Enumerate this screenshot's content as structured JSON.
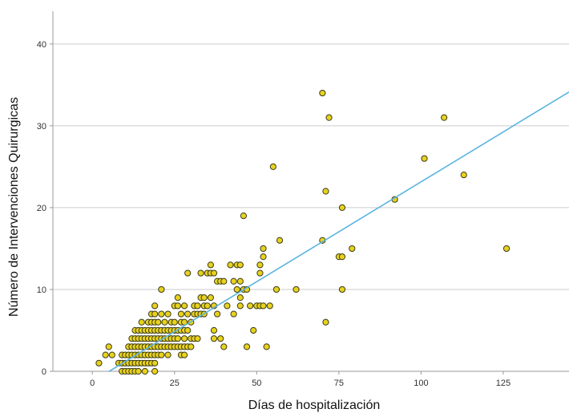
{
  "chart_data": {
    "type": "scatter",
    "title": "",
    "xlabel": "Días de hospitalización",
    "ylabel": "Número de Intervenciones Quirurgicas",
    "xlim": [
      -12,
      145
    ],
    "ylim": [
      0,
      44
    ],
    "xticks": [
      0,
      25,
      50,
      75,
      100,
      125
    ],
    "yticks": [
      0,
      10,
      20,
      30,
      40
    ],
    "xtick_labels": [
      "0",
      "25",
      "50",
      "75",
      "100",
      "125"
    ],
    "ytick_labels": [
      "0",
      "10",
      "20",
      "30",
      "40"
    ],
    "grid": "horizontal",
    "legend": "none",
    "colors": {
      "point_fill": "#e8d21e",
      "point_stroke": "#3a3a1a",
      "fit_line": "#5bb4e0",
      "grid": "#cccccc",
      "axis": "#999999"
    },
    "fit_line": {
      "slope": 0.244,
      "intercept": -1.25,
      "x_range": [
        5,
        145
      ]
    },
    "points": [
      [
        2,
        1
      ],
      [
        4,
        2
      ],
      [
        5,
        3
      ],
      [
        6,
        2
      ],
      [
        8,
        1
      ],
      [
        9,
        0
      ],
      [
        9,
        1
      ],
      [
        9,
        2
      ],
      [
        10,
        0
      ],
      [
        10,
        1
      ],
      [
        10,
        2
      ],
      [
        11,
        0
      ],
      [
        11,
        1
      ],
      [
        11,
        2
      ],
      [
        11,
        3
      ],
      [
        12,
        0
      ],
      [
        12,
        1
      ],
      [
        12,
        2
      ],
      [
        12,
        3
      ],
      [
        12,
        4
      ],
      [
        13,
        0
      ],
      [
        13,
        1
      ],
      [
        13,
        2
      ],
      [
        13,
        3
      ],
      [
        13,
        4
      ],
      [
        13,
        5
      ],
      [
        14,
        0
      ],
      [
        14,
        1
      ],
      [
        14,
        2
      ],
      [
        14,
        3
      ],
      [
        14,
        4
      ],
      [
        14,
        5
      ],
      [
        15,
        1
      ],
      [
        15,
        2
      ],
      [
        15,
        3
      ],
      [
        15,
        4
      ],
      [
        15,
        5
      ],
      [
        15,
        6
      ],
      [
        16,
        0
      ],
      [
        16,
        1
      ],
      [
        16,
        2
      ],
      [
        16,
        3
      ],
      [
        16,
        4
      ],
      [
        16,
        5
      ],
      [
        17,
        1
      ],
      [
        17,
        2
      ],
      [
        17,
        3
      ],
      [
        17,
        4
      ],
      [
        17,
        5
      ],
      [
        17,
        6
      ],
      [
        18,
        1
      ],
      [
        18,
        2
      ],
      [
        18,
        3
      ],
      [
        18,
        4
      ],
      [
        18,
        5
      ],
      [
        18,
        6
      ],
      [
        18,
        7
      ],
      [
        19,
        0
      ],
      [
        19,
        1
      ],
      [
        19,
        2
      ],
      [
        19,
        3
      ],
      [
        19,
        4
      ],
      [
        19,
        5
      ],
      [
        19,
        6
      ],
      [
        19,
        7
      ],
      [
        19,
        8
      ],
      [
        20,
        2
      ],
      [
        20,
        3
      ],
      [
        20,
        4
      ],
      [
        20,
        5
      ],
      [
        20,
        6
      ],
      [
        21,
        2
      ],
      [
        21,
        3
      ],
      [
        21,
        4
      ],
      [
        21,
        5
      ],
      [
        21,
        7
      ],
      [
        21,
        10
      ],
      [
        22,
        3
      ],
      [
        22,
        4
      ],
      [
        22,
        5
      ],
      [
        22,
        6
      ],
      [
        23,
        2
      ],
      [
        23,
        3
      ],
      [
        23,
        4
      ],
      [
        23,
        5
      ],
      [
        23,
        7
      ],
      [
        24,
        3
      ],
      [
        24,
        4
      ],
      [
        24,
        5
      ],
      [
        24,
        6
      ],
      [
        25,
        3
      ],
      [
        25,
        4
      ],
      [
        25,
        5
      ],
      [
        25,
        6
      ],
      [
        25,
        8
      ],
      [
        26,
        3
      ],
      [
        26,
        4
      ],
      [
        26,
        5
      ],
      [
        26,
        8
      ],
      [
        26,
        9
      ],
      [
        27,
        2
      ],
      [
        27,
        3
      ],
      [
        27,
        5
      ],
      [
        27,
        6
      ],
      [
        27,
        7
      ],
      [
        28,
        2
      ],
      [
        28,
        3
      ],
      [
        28,
        4
      ],
      [
        28,
        5
      ],
      [
        28,
        6
      ],
      [
        28,
        8
      ],
      [
        29,
        3
      ],
      [
        29,
        5
      ],
      [
        29,
        7
      ],
      [
        29,
        12
      ],
      [
        30,
        3
      ],
      [
        30,
        4
      ],
      [
        30,
        6
      ],
      [
        31,
        4
      ],
      [
        31,
        7
      ],
      [
        31,
        8
      ],
      [
        32,
        4
      ],
      [
        32,
        7
      ],
      [
        32,
        8
      ],
      [
        33,
        7
      ],
      [
        33,
        9
      ],
      [
        33,
        12
      ],
      [
        34,
        7
      ],
      [
        34,
        8
      ],
      [
        34,
        9
      ],
      [
        35,
        8
      ],
      [
        35,
        12
      ],
      [
        36,
        9
      ],
      [
        36,
        12
      ],
      [
        36,
        13
      ],
      [
        37,
        4
      ],
      [
        37,
        5
      ],
      [
        37,
        8
      ],
      [
        37,
        12
      ],
      [
        38,
        7
      ],
      [
        38,
        11
      ],
      [
        39,
        4
      ],
      [
        39,
        11
      ],
      [
        40,
        3
      ],
      [
        40,
        11
      ],
      [
        41,
        8
      ],
      [
        42,
        13
      ],
      [
        43,
        11
      ],
      [
        43,
        7
      ],
      [
        44,
        10
      ],
      [
        44,
        13
      ],
      [
        45,
        8
      ],
      [
        45,
        9
      ],
      [
        45,
        11
      ],
      [
        45,
        13
      ],
      [
        46,
        10
      ],
      [
        46,
        19
      ],
      [
        47,
        3
      ],
      [
        47,
        10
      ],
      [
        48,
        8
      ],
      [
        49,
        5
      ],
      [
        50,
        8
      ],
      [
        51,
        8
      ],
      [
        51,
        12
      ],
      [
        51,
        13
      ],
      [
        52,
        8
      ],
      [
        52,
        14
      ],
      [
        52,
        15
      ],
      [
        53,
        3
      ],
      [
        54,
        8
      ],
      [
        55,
        25
      ],
      [
        56,
        10
      ],
      [
        57,
        16
      ],
      [
        62,
        10
      ],
      [
        70,
        16
      ],
      [
        70,
        34
      ],
      [
        71,
        22
      ],
      [
        71,
        6
      ],
      [
        72,
        31
      ],
      [
        75,
        14
      ],
      [
        76,
        10
      ],
      [
        76,
        14
      ],
      [
        76,
        20
      ],
      [
        79,
        15
      ],
      [
        92,
        21
      ],
      [
        101,
        26
      ],
      [
        107,
        31
      ],
      [
        113,
        24
      ],
      [
        126,
        15
      ]
    ]
  }
}
